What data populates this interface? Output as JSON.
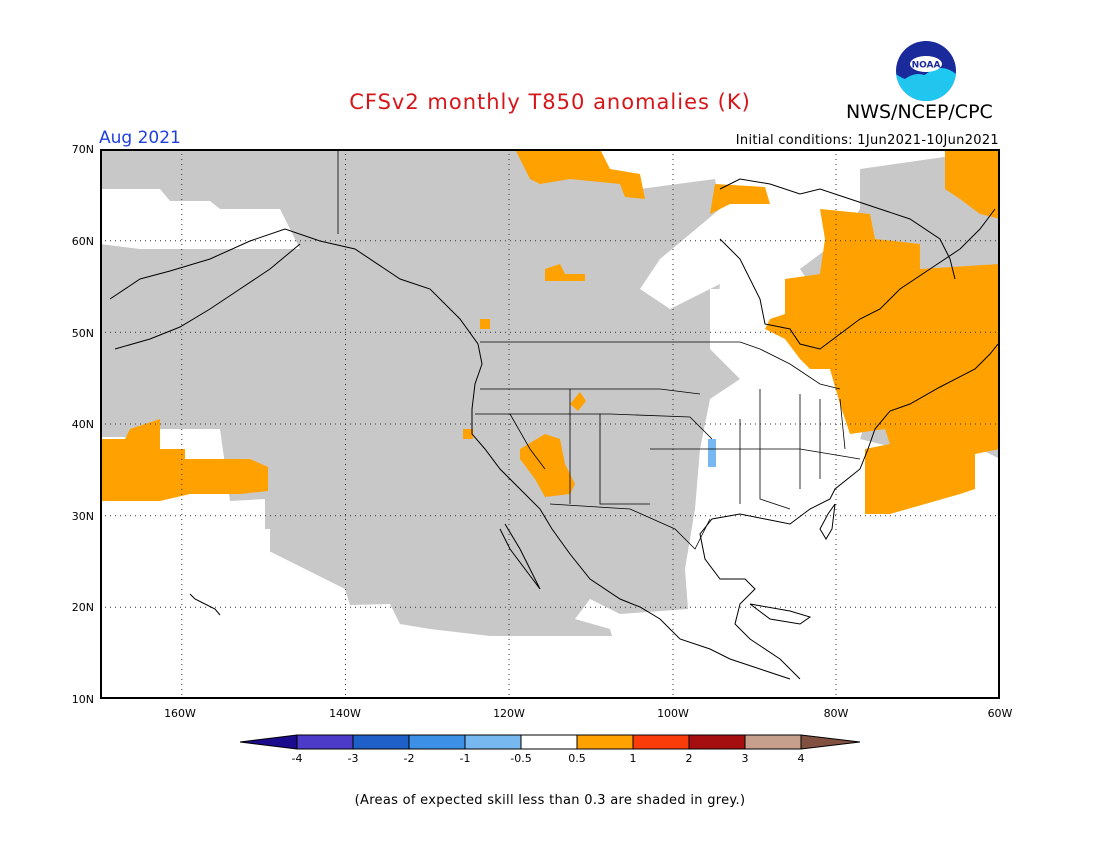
{
  "header": {
    "title": "CFSv2 monthly T850 anomalies (K)",
    "agency": "NWS/NCEP/CPC",
    "logo_text": "NOAA",
    "month": "Aug 2021",
    "initial_conditions": "Initial conditions: 1Jun2021-10Jun2021"
  },
  "axes": {
    "lat_labels": [
      "70N",
      "60N",
      "50N",
      "40N",
      "30N",
      "20N",
      "10N"
    ],
    "lon_labels": [
      "160W",
      "140W",
      "120W",
      "100W",
      "80W",
      "60W"
    ]
  },
  "colorbar": {
    "labels": [
      "-4",
      "-3",
      "-2",
      "-1",
      "-0.5",
      "0.5",
      "1",
      "2",
      "3",
      "4"
    ],
    "colors": [
      "#1a0c8c",
      "#4c3bc9",
      "#1f60c8",
      "#3c90e6",
      "#78b8f0",
      "#ffffff",
      "#ffa100",
      "#fa3c0a",
      "#a50f0f",
      "#c6a08c",
      "#825041"
    ]
  },
  "footnote": "(Areas of expected skill less than 0.3 are shaded in grey.)",
  "colors": {
    "grey_low_skill": "#c8c8c8",
    "warm_anomaly": "#ffa100",
    "cool_anomaly": "#78b8f0",
    "title": "#d6161a",
    "month": "#1f3fe0"
  }
}
